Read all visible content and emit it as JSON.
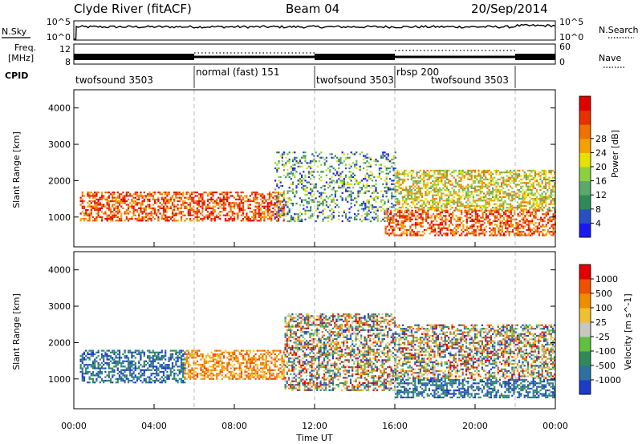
{
  "header": {
    "station": "Clyde River (fitACF)",
    "beam": "Beam 04",
    "date": "20/Sep/2014"
  },
  "panel_labels": {
    "nsky": "N.Sky",
    "nsearch": "N.Search",
    "freq_line1": "Freq.",
    "freq_line2": "[MHz]",
    "nave": "Nave",
    "cpid": "CPID"
  },
  "noise_axis": {
    "left_ticks": [
      "10^5",
      "10^0"
    ],
    "right_ticks": [
      "10^5",
      "10^0"
    ]
  },
  "freq_axis": {
    "left_ticks": [
      "12",
      "8"
    ],
    "right_ticks": [
      "60",
      "0"
    ]
  },
  "cpid_segments": [
    {
      "label": "twofsound 3503",
      "start_h": 0,
      "end_h": 6
    },
    {
      "label": "normal (fast) 151",
      "start_h": 6,
      "end_h": 12
    },
    {
      "label": "twofsound 3503",
      "start_h": 12,
      "end_h": 16
    },
    {
      "label": "rbsp 200",
      "start_h": 16,
      "end_h": 16.01
    },
    {
      "label": "twofsound 3503",
      "start_h": 16,
      "end_h": 22
    }
  ],
  "chart_data": [
    {
      "type": "heatmap",
      "name": "power",
      "ylabel": "Slant Range [km]",
      "xlabel": "Time UT",
      "xlim": [
        0,
        24
      ],
      "ylim": [
        180,
        4500
      ],
      "x_ticks": [
        "00:00",
        "04:00",
        "08:00",
        "12:00",
        "16:00",
        "20:00",
        "00:00"
      ],
      "y_ticks": [
        1000,
        2000,
        3000,
        4000
      ],
      "colorbar": {
        "label": "Power [dB]",
        "ticks": [
          4,
          8,
          12,
          16,
          20,
          24,
          28
        ],
        "colors": [
          "#1a1af0",
          "#2850c0",
          "#2e8b57",
          "#5aa86a",
          "#8bd040",
          "#e8e000",
          "#f4a000",
          "#f07000",
          "#e83000",
          "#e00000"
        ]
      },
      "echo_bands": [
        {
          "t0": 0.3,
          "t1": 10.5,
          "r0": 900,
          "r1": 1700,
          "level": "high"
        },
        {
          "t0": 10,
          "t1": 16,
          "r0": 900,
          "r1": 2800,
          "level": "low"
        },
        {
          "t0": 15.5,
          "t1": 24,
          "r0": 500,
          "r1": 1200,
          "level": "high"
        },
        {
          "t0": 16,
          "t1": 24,
          "r0": 1200,
          "r1": 2300,
          "level": "medium"
        }
      ]
    },
    {
      "type": "heatmap",
      "name": "velocity",
      "ylabel": "Slant Range [km]",
      "xlabel": "Time UT",
      "xlim": [
        0,
        24
      ],
      "ylim": [
        180,
        4500
      ],
      "x_ticks": [
        "00:00",
        "04:00",
        "08:00",
        "12:00",
        "16:00",
        "20:00",
        "00:00"
      ],
      "y_ticks": [
        1000,
        2000,
        3000,
        4000
      ],
      "colorbar": {
        "label": "Velocity [m s^-1]",
        "ticks": [
          "1000",
          "500",
          "100",
          "25",
          "-25",
          "-100",
          "-500",
          "-1000"
        ],
        "colors": [
          "#1a3cc8",
          "#2e70a0",
          "#2e8b57",
          "#60c040",
          "#c8c8c0",
          "#f0c030",
          "#f08c00",
          "#f05000",
          "#e00000"
        ]
      },
      "echo_bands": [
        {
          "t0": 0.3,
          "t1": 5.5,
          "r0": 900,
          "r1": 1800,
          "level": "toward"
        },
        {
          "t0": 5.5,
          "t1": 10.5,
          "r0": 1000,
          "r1": 1800,
          "level": "away"
        },
        {
          "t0": 10.5,
          "t1": 16,
          "r0": 700,
          "r1": 2800,
          "level": "mixed"
        },
        {
          "t0": 16,
          "t1": 24,
          "r0": 500,
          "r1": 1000,
          "level": "toward"
        },
        {
          "t0": 16,
          "t1": 24,
          "r0": 1000,
          "r1": 2500,
          "level": "mixed"
        }
      ]
    }
  ]
}
